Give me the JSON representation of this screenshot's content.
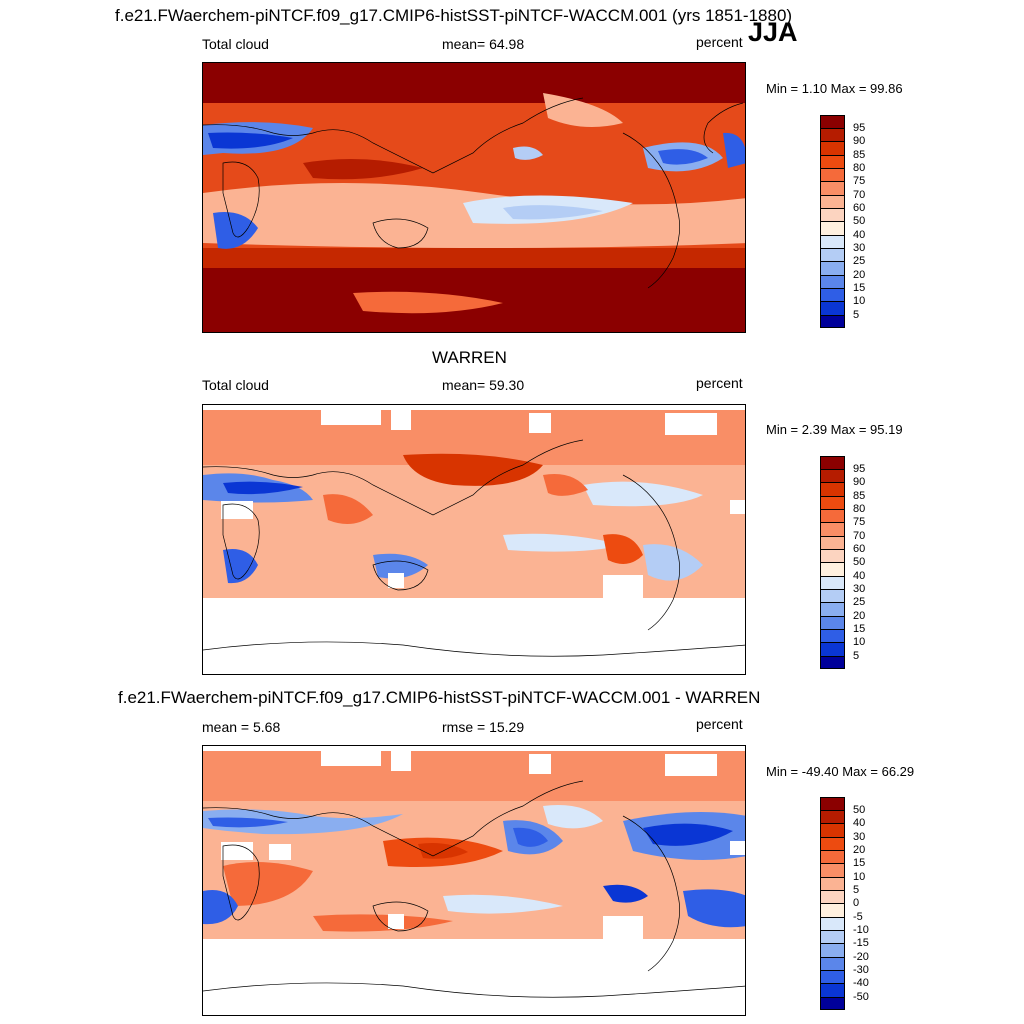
{
  "season": "JJA",
  "panels": [
    {
      "title": "f.e21.FWaerchem-piNTCF.f09_g17.CMIP6-histSST-piNTCF-WACCM.001 (yrs 1851-1880)",
      "left_label": "Total cloud",
      "center_label": "mean=  64.98",
      "units": "percent",
      "minmax": "Min =   1.10 Max =  99.86"
    },
    {
      "title": "WARREN",
      "left_label": "Total cloud",
      "center_label": "mean=  59.30",
      "units": "percent",
      "minmax": "Min =   2.39 Max =  95.19"
    },
    {
      "title": "f.e21.FWaerchem-piNTCF.f09_g17.CMIP6-histSST-piNTCF-WACCM.001 - WARREN",
      "left_label": "mean =   5.68",
      "center_label": "rmse =  15.29",
      "units": "percent",
      "minmax": "Min = -49.40 Max =  66.29"
    }
  ],
  "colorbars": {
    "cloud": {
      "labels": [
        "95",
        "90",
        "85",
        "80",
        "75",
        "70",
        "60",
        "50",
        "40",
        "30",
        "25",
        "20",
        "15",
        "10",
        "5"
      ],
      "colors": [
        "#8b0000",
        "#b51c00",
        "#d83400",
        "#ed4b10",
        "#f56a3a",
        "#f98e66",
        "#fbb393",
        "#fcd4c0",
        "#fff0df",
        "#d9e8fa",
        "#b4cdf5",
        "#8aaef0",
        "#5b86ea",
        "#2f5ee6",
        "#0a36d4",
        "#00009a"
      ]
    },
    "difference": {
      "labels": [
        "50",
        "40",
        "30",
        "20",
        "15",
        "10",
        "5",
        "0",
        "-5",
        "-10",
        "-15",
        "-20",
        "-30",
        "-40",
        "-50"
      ],
      "colors": [
        "#8b0000",
        "#b51c00",
        "#d83400",
        "#ed4b10",
        "#f56a3a",
        "#f98e66",
        "#fbb393",
        "#fcd4c0",
        "#fff0df",
        "#d9e8fa",
        "#b4cdf5",
        "#8aaef0",
        "#5b86ea",
        "#2f5ee6",
        "#0a36d4",
        "#00009a"
      ]
    }
  }
}
